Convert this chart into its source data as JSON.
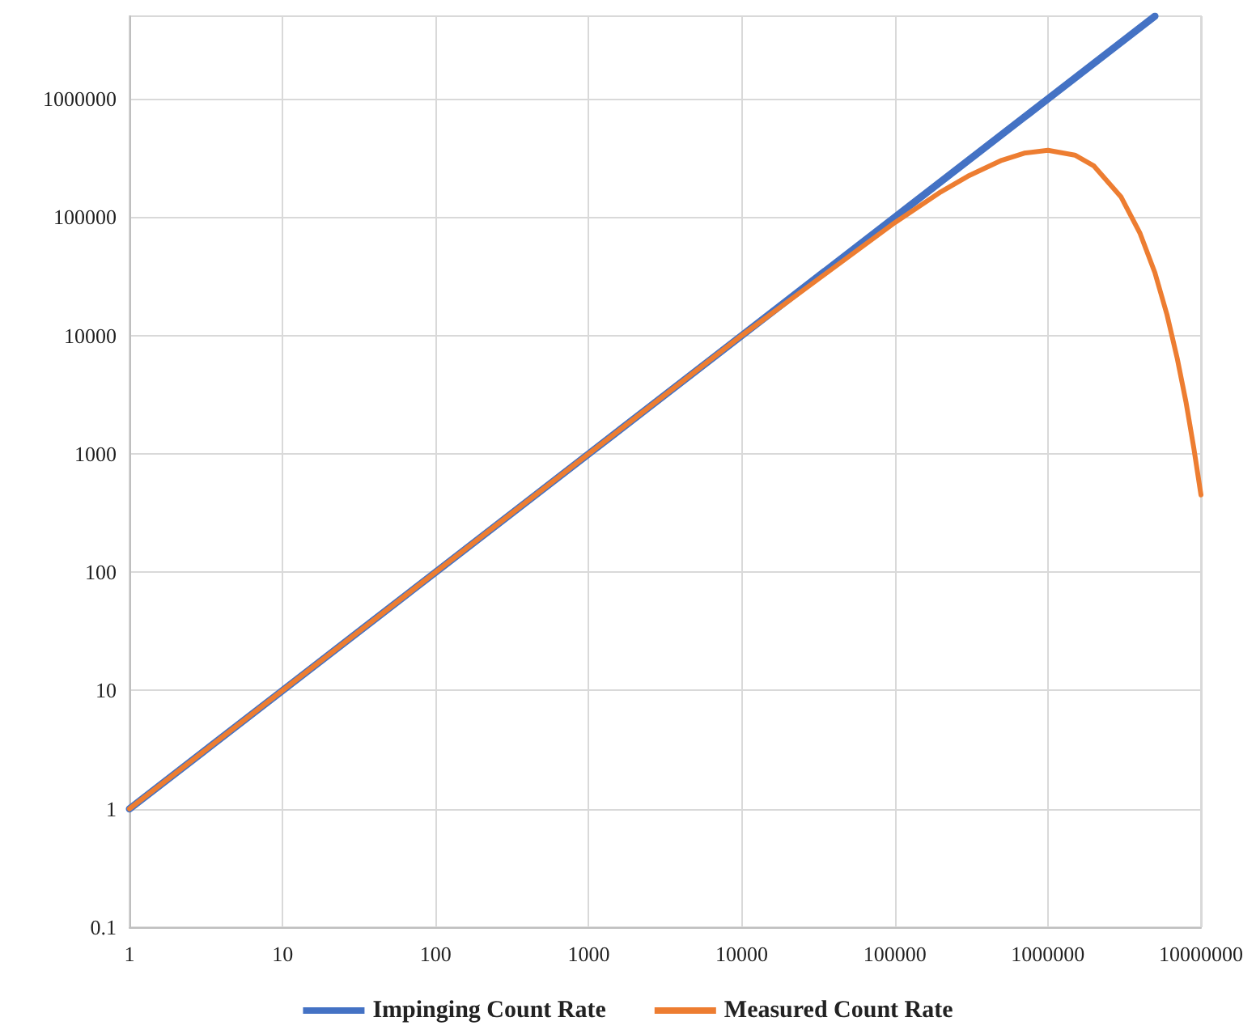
{
  "chart_data": {
    "type": "line",
    "log": "xy",
    "grid": true,
    "legend": "bottom",
    "marker": "none",
    "line_style": "solid",
    "xlim": [
      1,
      10000000
    ],
    "xticks": [
      1,
      10,
      100,
      1000,
      10000,
      100000,
      1000000,
      10000000
    ],
    "ylim": [
      0.1,
      5000000
    ],
    "yticks": [
      0.1,
      1,
      10,
      100,
      1000,
      10000,
      100000,
      1000000
    ],
    "series": [
      {
        "name": "Impinging Count Rate",
        "color": "#4472c4",
        "x": [
          1,
          10,
          100,
          1000,
          10000,
          100000,
          1000000,
          5000000
        ],
        "values": [
          1,
          10,
          100,
          1000,
          10000,
          100000,
          1000000,
          5000000
        ]
      },
      {
        "name": "Measured Count Rate",
        "color": "#ed7d31",
        "x": [
          1,
          10,
          100,
          1000,
          10000,
          100000,
          200000,
          300000,
          500000,
          700000,
          1000000,
          1500000,
          2000000,
          3000000,
          4000000,
          5000000,
          6000000,
          7000000,
          8000000,
          9000000,
          10000000
        ],
        "values": [
          1,
          10,
          100,
          1000,
          10000,
          90000,
          164000,
          222000,
          303000,
          348000,
          368000,
          335000,
          271000,
          149000,
          73000,
          34000,
          15000,
          6400,
          2700,
          1100,
          450
        ]
      }
    ]
  }
}
